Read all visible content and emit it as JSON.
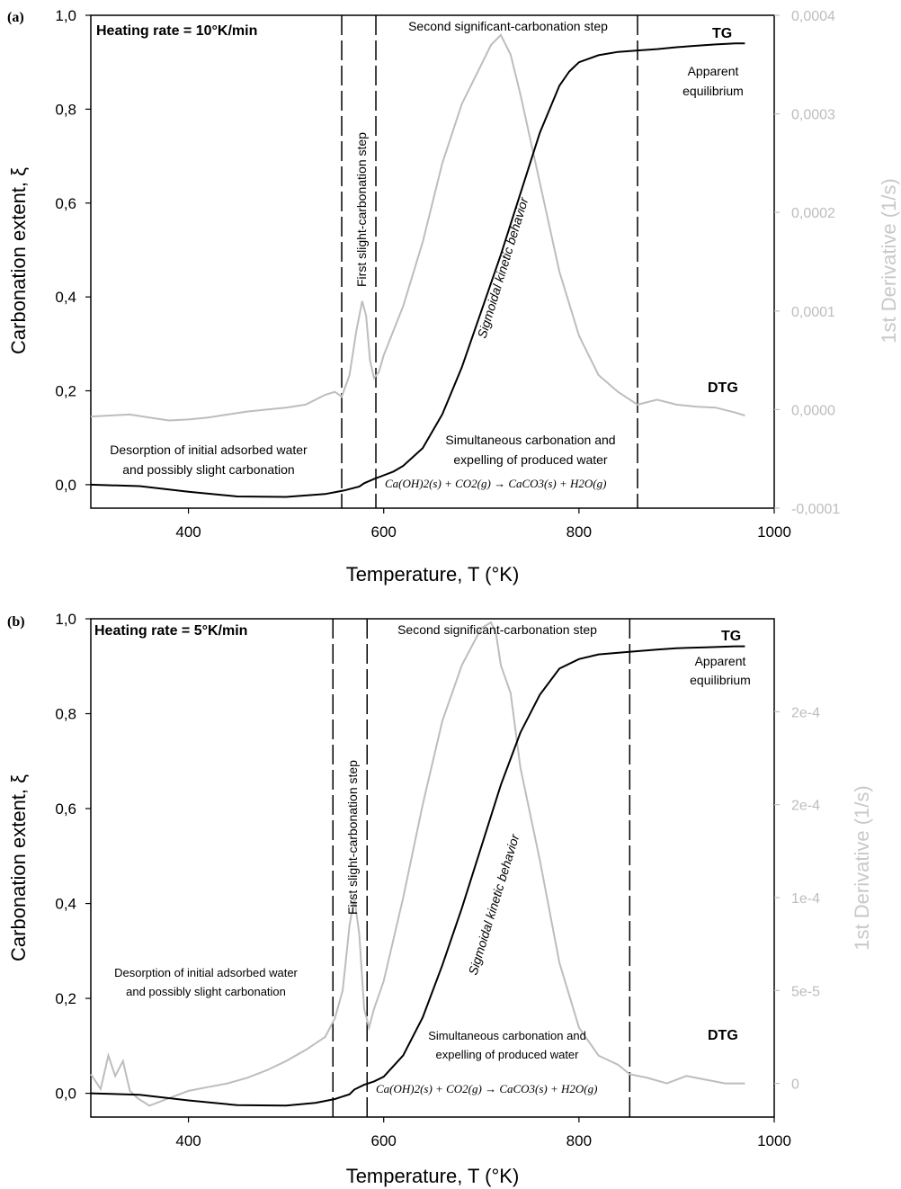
{
  "chart_data": [
    {
      "type": "line",
      "panel_label": "(a)",
      "heating_rate_label": "Heating rate = 10°K/min",
      "xlabel": "Temperature, T (°K)",
      "ylabel": "Carbonation extent, ξ",
      "y2label": "1st Derivative (1/s)",
      "xlim": [
        300,
        1000
      ],
      "ylim": [
        -0.05,
        1.0
      ],
      "y2lim": [
        -0.0001,
        0.0004
      ],
      "x_ticks": [
        "400",
        "600",
        "800",
        "1000"
      ],
      "y_ticks": [
        "0,0",
        "0,2",
        "0,4",
        "0,6",
        "0,8",
        "1,0"
      ],
      "y2_ticks": [
        "-0,0001",
        "0,0000",
        "0,0001",
        "0,0002",
        "0,0003",
        "0,0004"
      ],
      "vlines": [
        557,
        592,
        860
      ],
      "annotations": {
        "step1": "First slight-carbonation step",
        "step2": "Second significant-carbonation step",
        "equilibrium_1": "Apparent",
        "equilibrium_2": "equilibrium",
        "desorption_1": "Desorption of initial adsorbed water",
        "desorption_2": "and possibly slight carbonation",
        "simultaneous_1": "Simultaneous carbonation and",
        "simultaneous_2": "expelling of produced water",
        "sigmoidal": "Sigmoidal kinetic behavior",
        "reaction": "Ca(OH)2(s) + CO2(g) → CaCO3(s) + H2O(g)"
      },
      "series": [
        {
          "name": "TG",
          "axis": "left",
          "color": "#000000",
          "x": [
            300,
            350,
            400,
            450,
            500,
            540,
            560,
            575,
            580,
            590,
            600,
            610,
            620,
            640,
            660,
            680,
            700,
            720,
            740,
            760,
            780,
            790,
            800,
            820,
            840,
            860,
            880,
            900,
            920,
            940,
            960,
            970
          ],
          "y": [
            0.0,
            -0.003,
            -0.015,
            -0.025,
            -0.026,
            -0.02,
            -0.012,
            -0.004,
            0.003,
            0.012,
            0.02,
            0.028,
            0.04,
            0.078,
            0.15,
            0.25,
            0.37,
            0.49,
            0.62,
            0.75,
            0.85,
            0.88,
            0.9,
            0.915,
            0.922,
            0.925,
            0.928,
            0.932,
            0.935,
            0.938,
            0.94,
            0.94
          ]
        },
        {
          "name": "DTG",
          "axis": "right",
          "color": "#bdbdbd",
          "x": [
            300,
            320,
            340,
            360,
            380,
            400,
            420,
            440,
            460,
            480,
            500,
            520,
            540,
            550,
            557,
            565,
            572,
            578,
            582,
            586,
            590,
            595,
            600,
            620,
            640,
            660,
            680,
            700,
            710,
            720,
            730,
            740,
            760,
            780,
            800,
            820,
            840,
            860,
            880,
            900,
            920,
            940,
            960,
            970
          ],
          "y": [
            -7e-06,
            -6e-06,
            -5e-06,
            -8e-06,
            -1.1e-05,
            -1e-05,
            -8e-06,
            -5e-06,
            -2e-06,
            0.0,
            2e-06,
            5e-06,
            1.5e-05,
            1.8e-05,
            1.3e-05,
            3.5e-05,
            8e-05,
            0.00011,
            9.5e-05,
            5e-05,
            3.2e-05,
            3.8e-05,
            5.5e-05,
            0.000105,
            0.00017,
            0.00025,
            0.00031,
            0.00035,
            0.00037,
            0.00038,
            0.00036,
            0.00032,
            0.00023,
            0.00014,
            7.5e-05,
            3.5e-05,
            1.8e-05,
            5e-06,
            1e-05,
            5e-06,
            3e-06,
            2e-06,
            -3e-06,
            -6e-06
          ]
        }
      ]
    },
    {
      "type": "line",
      "panel_label": "(b)",
      "heating_rate_label": "Heating rate = 5°K/min",
      "xlabel": "Temperature, T (°K)",
      "ylabel": "Carbonation extent, ξ",
      "y2label": "1st Derivative (1/s)",
      "xlim": [
        300,
        1000
      ],
      "ylim": [
        -0.05,
        1.0
      ],
      "y2lim": [
        -1.81e-05,
        0.00025
      ],
      "x_ticks": [
        "400",
        "600",
        "800",
        "1000"
      ],
      "y_ticks": [
        "0,0",
        "0,2",
        "0,4",
        "0,6",
        "0,8",
        "1,0"
      ],
      "y2_ticks": [
        "0",
        "5e-5",
        "1e-4",
        "2e-4",
        "2e-4"
      ],
      "y2_tick_values": [
        0,
        5e-05,
        0.0001,
        0.00015,
        0.0002
      ],
      "vlines": [
        548,
        583,
        852
      ],
      "annotations": {
        "step1": "First slight-carbonation step",
        "step2": "Second significant-carbonation step",
        "equilibrium_1": "Apparent",
        "equilibrium_2": "equilibrium",
        "desorption_1": "Desorption of initial adsorbed water",
        "desorption_2": "and possibly slight carbonation",
        "simultaneous_1": "Simultaneous carbonation and",
        "simultaneous_2": "expelling of produced water",
        "sigmoidal": "Sigmoidal kinetic behavior",
        "reaction": "Ca(OH)2(s) + CO2(g) → CaCO3(s) + H2O(g)"
      },
      "series": [
        {
          "name": "TG",
          "axis": "left",
          "color": "#000000",
          "x": [
            300,
            350,
            400,
            450,
            500,
            530,
            550,
            565,
            570,
            580,
            590,
            600,
            620,
            640,
            660,
            680,
            700,
            720,
            740,
            760,
            780,
            800,
            820,
            850,
            880,
            900,
            930,
            960,
            970
          ],
          "y": [
            0.0,
            -0.003,
            -0.015,
            -0.025,
            -0.026,
            -0.02,
            -0.012,
            -0.002,
            0.008,
            0.018,
            0.025,
            0.035,
            0.08,
            0.16,
            0.27,
            0.39,
            0.52,
            0.65,
            0.76,
            0.84,
            0.895,
            0.915,
            0.925,
            0.93,
            0.935,
            0.938,
            0.94,
            0.942,
            0.942
          ]
        },
        {
          "name": "DTG",
          "axis": "right",
          "color": "#bdbdbd",
          "x": [
            300,
            310,
            318,
            325,
            333,
            340,
            348,
            360,
            380,
            400,
            420,
            440,
            460,
            480,
            500,
            520,
            540,
            550,
            558,
            565,
            570,
            575,
            580,
            585,
            590,
            600,
            620,
            640,
            660,
            680,
            700,
            710,
            715,
            720,
            730,
            740,
            760,
            780,
            800,
            820,
            840,
            852,
            870,
            890,
            910,
            930,
            950,
            970
          ],
          "y": [
            5e-06,
            -3e-06,
            1.5e-05,
            4e-06,
            1.2e-05,
            -4e-06,
            -8e-06,
            -1.2e-05,
            -8e-06,
            -4e-06,
            -2e-06,
            0.0,
            3e-06,
            7e-06,
            1.2e-05,
            1.8e-05,
            2.5e-05,
            3.5e-05,
            5e-05,
            8.5e-05,
            0.0001,
            8e-05,
            4e-05,
            3e-05,
            4e-05,
            5.5e-05,
            0.0001,
            0.00015,
            0.000195,
            0.000225,
            0.000245,
            0.000248,
            0.000242,
            0.000225,
            0.00021,
            0.00017,
            0.00012,
            6.5e-05,
            3e-05,
            1.5e-05,
            1e-05,
            5e-06,
            3e-06,
            0.0,
            4e-06,
            2e-06,
            0.0,
            0.0
          ]
        }
      ]
    }
  ]
}
